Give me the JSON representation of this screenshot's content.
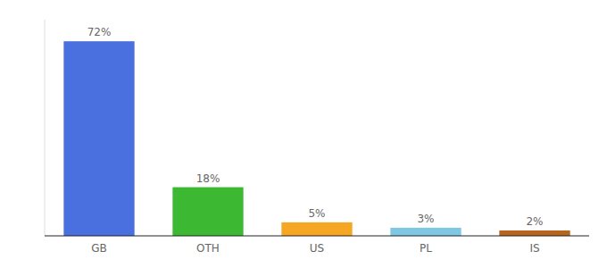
{
  "chart_data": {
    "type": "bar",
    "categories": [
      "GB",
      "OTH",
      "US",
      "PL",
      "IS"
    ],
    "values": [
      72,
      18,
      5,
      3,
      2
    ],
    "value_labels": [
      "72%",
      "18%",
      "5%",
      "3%",
      "2%"
    ],
    "colors": [
      "#4a6fdf",
      "#3db832",
      "#f5a623",
      "#7ec8e3",
      "#b5651d"
    ],
    "ylim": [
      0,
      80
    ],
    "data_labels": true,
    "tick_labels": "x",
    "grid": false
  }
}
